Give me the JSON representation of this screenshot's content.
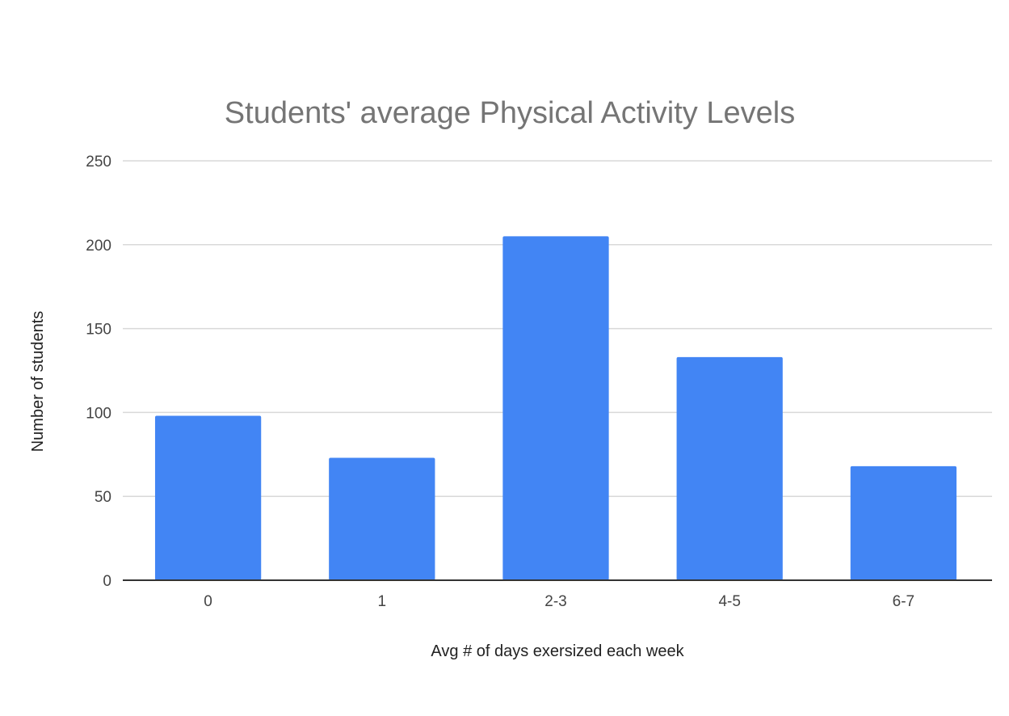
{
  "chart_data": {
    "type": "bar",
    "title": "Students' average Physical Activity Levels",
    "xlabel": "Avg # of days exersized each week",
    "ylabel": "Number of students",
    "categories": [
      "0",
      "1",
      "2-3",
      "4-5",
      "6-7"
    ],
    "values": [
      98,
      73,
      205,
      133,
      68
    ],
    "ylim": [
      0,
      250
    ],
    "yticks": [
      "0",
      "50",
      "100",
      "150",
      "200",
      "250"
    ],
    "grid": true,
    "legend": "none",
    "bar_color": "#4285f4"
  }
}
